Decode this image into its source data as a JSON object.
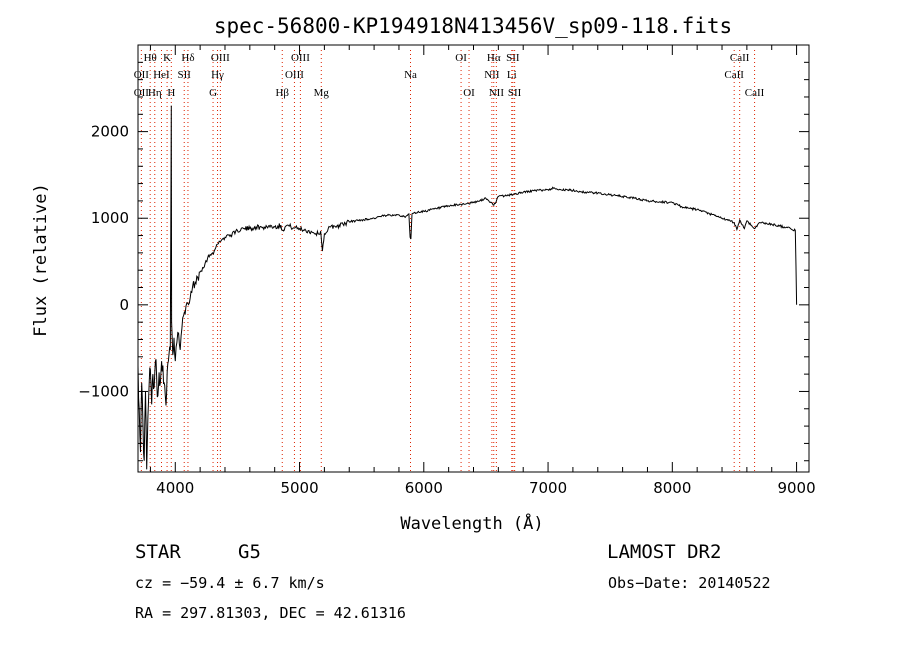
{
  "chart_data": {
    "type": "line",
    "title": "spec-56800-KP194918N413456V_sp09-118.fits",
    "xlabel": "Wavelength (Å)",
    "ylabel": "Flux (relative)",
    "xlim": [
      3700,
      9100
    ],
    "ylim": [
      -1930,
      3000
    ],
    "x_ticks": [
      4000,
      5000,
      6000,
      7000,
      8000,
      9000
    ],
    "y_ticks": [
      -1000,
      0,
      1000,
      2000
    ],
    "tick_labels_x": [
      "4000",
      "5000",
      "6000",
      "7000",
      "8000",
      "9000"
    ],
    "tick_labels_y": [
      "−1000",
      "0",
      "1000",
      "2000"
    ],
    "grid": false,
    "series": [
      {
        "color": "#000000",
        "x": [
          3700,
          3710,
          3720,
          3730,
          3740,
          3750,
          3760,
          3770,
          3780,
          3790,
          3800,
          3810,
          3820,
          3830,
          3840,
          3850,
          3860,
          3870,
          3880,
          3890,
          3900,
          3910,
          3920,
          3930,
          3940,
          3950,
          3960,
          3968,
          3970,
          3980,
          3990,
          4000,
          4020,
          4040,
          4060,
          4080,
          4100,
          4120,
          4140,
          4160,
          4180,
          4200,
          4220,
          4240,
          4260,
          4280,
          4300,
          4320,
          4340,
          4360,
          4380,
          4400,
          4420,
          4440,
          4460,
          4480,
          4500,
          4550,
          4600,
          4650,
          4700,
          4750,
          4800,
          4850,
          4861,
          4900,
          4950,
          5000,
          5050,
          5100,
          5150,
          5170,
          5184,
          5200,
          5250,
          5300,
          5350,
          5400,
          5450,
          5500,
          5550,
          5600,
          5650,
          5700,
          5750,
          5800,
          5850,
          5880,
          5890,
          5896,
          5905,
          5950,
          6000,
          6100,
          6200,
          6300,
          6400,
          6450,
          6500,
          6563,
          6600,
          6700,
          6800,
          6900,
          7000,
          7050,
          7100,
          7200,
          7300,
          7400,
          7500,
          7600,
          7700,
          7800,
          7900,
          8000,
          8100,
          8200,
          8300,
          8400,
          8498,
          8520,
          8542,
          8580,
          8600,
          8662,
          8700,
          8800,
          8900,
          8950,
          8990,
          9000
        ],
        "y": [
          -700,
          -1200,
          -1700,
          -900,
          -1400,
          -1800,
          -1000,
          -1900,
          -1300,
          -900,
          -750,
          -1150,
          -800,
          -950,
          -650,
          -820,
          -1050,
          -780,
          -900,
          -650,
          -700,
          -900,
          -1050,
          -1020,
          -680,
          -560,
          -520,
          2300,
          -200,
          -580,
          -380,
          -650,
          -320,
          -520,
          -150,
          -100,
          20,
          80,
          220,
          260,
          320,
          380,
          430,
          480,
          540,
          580,
          600,
          640,
          700,
          730,
          760,
          780,
          810,
          790,
          830,
          820,
          860,
          880,
          880,
          900,
          890,
          910,
          900,
          920,
          860,
          920,
          890,
          880,
          860,
          840,
          820,
          850,
          620,
          820,
          900,
          910,
          930,
          960,
          970,
          980,
          990,
          1000,
          1020,
          1030,
          1040,
          1040,
          1010,
          1050,
          780,
          760,
          1050,
          1070,
          1080,
          1110,
          1140,
          1160,
          1180,
          1200,
          1230,
          1150,
          1250,
          1270,
          1300,
          1320,
          1330,
          1350,
          1330,
          1320,
          1300,
          1290,
          1270,
          1250,
          1230,
          1200,
          1190,
          1180,
          1120,
          1100,
          1050,
          1000,
          950,
          870,
          980,
          880,
          970,
          880,
          950,
          930,
          900,
          880,
          860,
          0
        ]
      }
    ],
    "line_labels": {
      "color": "#dd2200",
      "lines": [
        {
          "wl": 3727,
          "row1": "",
          "row2": "OII",
          "row3": "OII"
        },
        {
          "wl": 3798,
          "row1": "Hθ",
          "row2": "",
          "row3": ""
        },
        {
          "wl": 3835,
          "row1": "",
          "row2": "",
          "row3": "Hη"
        },
        {
          "wl": 3889,
          "row1": "",
          "row2": "HeI",
          "row3": ""
        },
        {
          "wl": 3934,
          "row1": "K",
          "row2": "",
          "row3": ""
        },
        {
          "wl": 3968,
          "row1": "",
          "row2": "",
          "row3": "H"
        },
        {
          "wl": 4102,
          "row1": "Hδ",
          "row2": "",
          "row3": ""
        },
        {
          "wl": 4072,
          "row1": "",
          "row2": "SII",
          "row3": ""
        },
        {
          "wl": 4304,
          "row1": "",
          "row2": "",
          "row3": "G"
        },
        {
          "wl": 4340,
          "row1": "",
          "row2": "Hγ",
          "row3": ""
        },
        {
          "wl": 4363,
          "row1": "OIII",
          "row2": "",
          "row3": ""
        },
        {
          "wl": 4861,
          "row1": "",
          "row2": "",
          "row3": "Hβ"
        },
        {
          "wl": 4959,
          "row1": "",
          "row2": "OIII",
          "row3": ""
        },
        {
          "wl": 5007,
          "row1": "OIII",
          "row2": "",
          "row3": ""
        },
        {
          "wl": 5175,
          "row1": "",
          "row2": "",
          "row3": "Mg"
        },
        {
          "wl": 5893,
          "row1": "",
          "row2": "Na",
          "row3": ""
        },
        {
          "wl": 6300,
          "row1": "OI",
          "row2": "",
          "row3": ""
        },
        {
          "wl": 6364,
          "row1": "",
          "row2": "",
          "row3": "OI"
        },
        {
          "wl": 6548,
          "row1": "",
          "row2": "NII",
          "row3": ""
        },
        {
          "wl": 6563,
          "row1": "Hα",
          "row2": "",
          "row3": ""
        },
        {
          "wl": 6584,
          "row1": "",
          "row2": "",
          "row3": "NII"
        },
        {
          "wl": 6708,
          "row1": "",
          "row2": "Li",
          "row3": ""
        },
        {
          "wl": 6717,
          "row1": "SII",
          "row2": "",
          "row3": ""
        },
        {
          "wl": 6731,
          "row1": "",
          "row2": "",
          "row3": "SII"
        },
        {
          "wl": 8498,
          "row1": "",
          "row2": "CaII",
          "row3": ""
        },
        {
          "wl": 8542,
          "row1": "CaII",
          "row2": "",
          "row3": ""
        },
        {
          "wl": 8662,
          "row1": "",
          "row2": "",
          "row3": "CaII"
        }
      ]
    }
  },
  "info": {
    "class_label": "STAR",
    "subclass_label": "G5",
    "survey_label": "LAMOST DR2",
    "cz_text": "cz = −59.4 ± 6.7 km/s",
    "obs_date_text": "Obs−Date: 20140522",
    "coords_text": "RA = 297.81303, DEC =  42.61316"
  }
}
